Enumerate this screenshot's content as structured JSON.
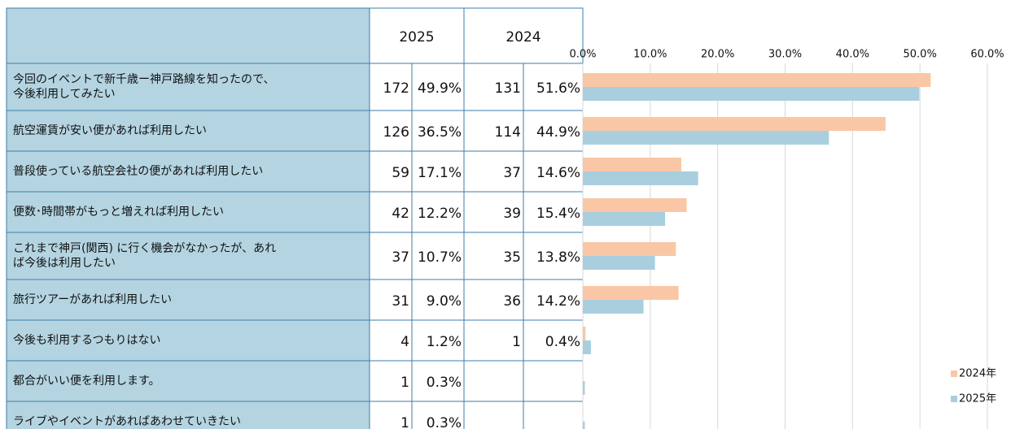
{
  "table": {
    "headers": [
      "2025",
      "2024"
    ],
    "rows": [
      {
        "label": [
          "今回のイベントで新千歳ー神戸路線を知ったので、",
          "今後利用してみたい"
        ],
        "count_2025": 172,
        "pct_2025": "49.9%",
        "count_2024": 131,
        "pct_2024": "51.6%"
      },
      {
        "label": [
          "航空運賃が安い便があれば利用したい"
        ],
        "count_2025": 126,
        "pct_2025": "36.5%",
        "count_2024": 114,
        "pct_2024": "44.9%"
      },
      {
        "label": [
          "普段使っている航空会社の便があれば利用したい"
        ],
        "count_2025": 59,
        "pct_2025": "17.1%",
        "count_2024": 37,
        "pct_2024": "14.6%"
      },
      {
        "label": [
          "便数･時間帯がもっと増えれば利用したい"
        ],
        "count_2025": 42,
        "pct_2025": "12.2%",
        "count_2024": 39,
        "pct_2024": "15.4%"
      },
      {
        "label": [
          "これまで神戸(関西) に行く機会がなかったが、あれ",
          "ば今後は利用したい"
        ],
        "count_2025": 37,
        "pct_2025": "10.7%",
        "count_2024": 35,
        "pct_2024": "13.8%"
      },
      {
        "label": [
          "旅行ツアーがあれば利用したい"
        ],
        "count_2025": 31,
        "pct_2025": "9.0%",
        "count_2024": 36,
        "pct_2024": "14.2%"
      },
      {
        "label": [
          "今後も利用するつもりはない"
        ],
        "count_2025": 4,
        "pct_2025": "1.2%",
        "count_2024": 1,
        "pct_2024": "0.4%"
      },
      {
        "label": [
          "都合がいい便を利用します。"
        ],
        "count_2025": 1,
        "pct_2025": "0.3%",
        "count_2024": null,
        "pct_2024": null
      },
      {
        "label": [
          "ライブやイベントがあればあわせていきたい"
        ],
        "count_2025": 1,
        "pct_2025": "0.3%",
        "count_2024": null,
        "pct_2024": null
      }
    ]
  },
  "chart_data": {
    "type": "barh",
    "series": [
      {
        "name": "2024年",
        "color": "#f9c7a5",
        "values": [
          51.6,
          44.9,
          14.6,
          15.4,
          13.8,
          14.2,
          0.4,
          null,
          null
        ]
      },
      {
        "name": "2025年",
        "color": "#a9cfdf",
        "values": [
          49.9,
          36.5,
          17.1,
          12.2,
          10.7,
          9.0,
          1.2,
          0.3,
          0.3
        ]
      }
    ],
    "xlim": [
      0,
      60
    ],
    "xticks": [
      {
        "value": 0,
        "label": "0.0%"
      },
      {
        "value": 10,
        "label": "10.0%"
      },
      {
        "value": 20,
        "label": "20.0%"
      },
      {
        "value": 30,
        "label": "30.0%"
      },
      {
        "value": 40,
        "label": "40.0%"
      },
      {
        "value": 50,
        "label": "50.0%"
      },
      {
        "value": 60,
        "label": "60.0%"
      }
    ],
    "grid": true,
    "legend": "bottom-right"
  }
}
